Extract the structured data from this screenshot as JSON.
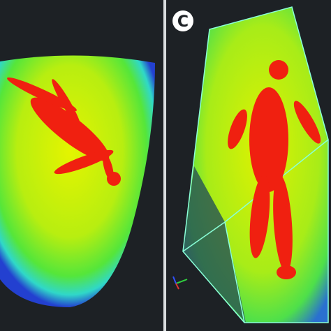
{
  "panel_label": "C"
}
